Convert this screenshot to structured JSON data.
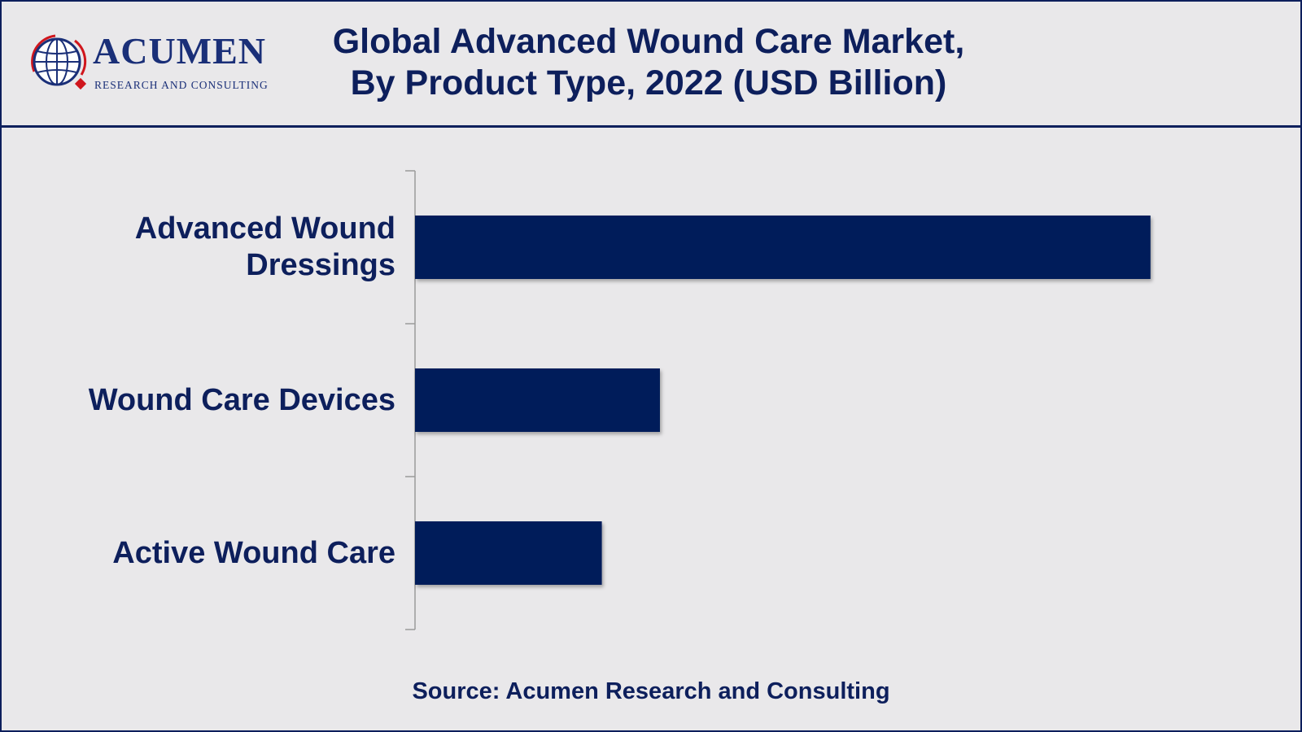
{
  "header": {
    "logo": {
      "word": "ACUMEN",
      "subtitle": "RESEARCH AND CONSULTING"
    },
    "title_line1": "Global Advanced Wound Care Market,",
    "title_line2": "By Product Type, 2022 (USD Billion)"
  },
  "chart_data": {
    "type": "bar",
    "orientation": "horizontal",
    "title": "Global Advanced Wound Care Market, By Product Type, 2022 (USD Billion)",
    "categories": [
      {
        "lines": [
          "Advanced Wound",
          "Dressings"
        ]
      },
      {
        "lines": [
          "Wound Care Devices"
        ]
      },
      {
        "lines": [
          "Active Wound Care"
        ]
      }
    ],
    "values": [
      10.0,
      3.33,
      2.54
    ],
    "xlim": [
      0,
      10.5
    ],
    "xlabel": "",
    "ylabel": "",
    "grid": false,
    "legend": "none",
    "bar_color": "#001c5a"
  },
  "footer": {
    "source": "Source: Acumen Research and Consulting"
  },
  "colors": {
    "background": "#e9e8ea",
    "brand_navy": "#0d1f5c",
    "logo_red": "#d0161d",
    "axis": "#9a9a9a"
  }
}
